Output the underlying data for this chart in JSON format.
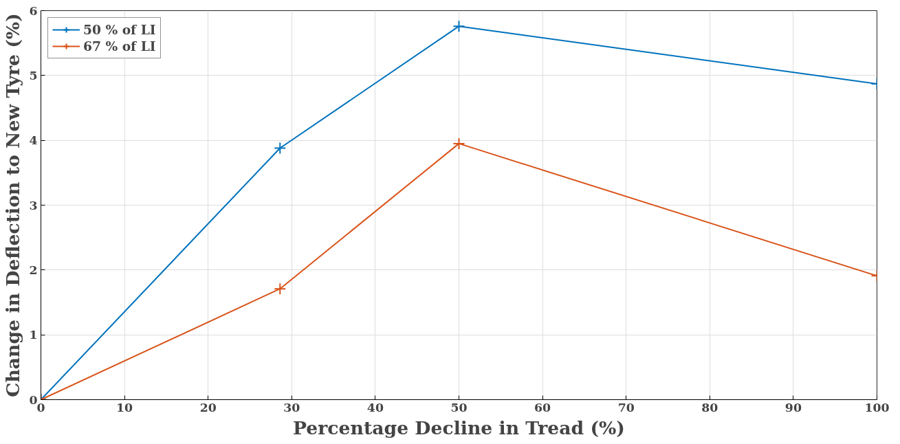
{
  "chart_data": {
    "type": "line",
    "xlabel": "Percentage Decline in Tread (%)",
    "ylabel": "Change in Deflection to New Tyre (%)",
    "x": [
      0,
      28.6,
      50,
      100
    ],
    "series": [
      {
        "name": "50 % of LI",
        "color": "#0072bd",
        "values": [
          0,
          3.88,
          5.76,
          4.87
        ]
      },
      {
        "name": "67 % of LI",
        "color": "#d95319",
        "values": [
          0,
          1.71,
          3.95,
          1.91
        ]
      }
    ],
    "xlim": [
      0,
      100
    ],
    "xticks": [
      0,
      10,
      20,
      30,
      40,
      50,
      60,
      70,
      80,
      90,
      100
    ],
    "ylim": [
      0,
      6
    ],
    "yticks": [
      0,
      1,
      2,
      3,
      4,
      5,
      6
    ],
    "grid": true,
    "legend": "top left",
    "marker": "cross",
    "line_style": "solid"
  }
}
